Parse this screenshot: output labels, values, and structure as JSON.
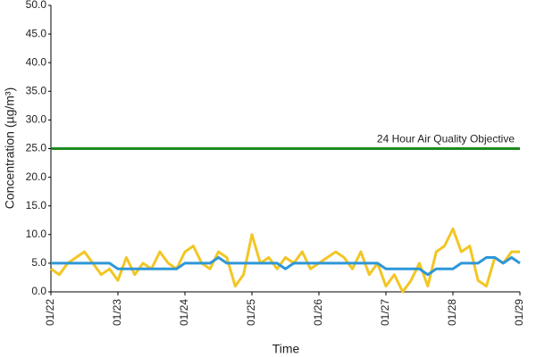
{
  "chart_data": {
    "type": "line",
    "xlabel": "Time",
    "ylabel": "Concentration (µg/m³)",
    "categories": [
      "01/22",
      null,
      null,
      null,
      null,
      null,
      null,
      null,
      "01/23",
      null,
      null,
      null,
      null,
      null,
      null,
      null,
      "01/24",
      null,
      null,
      null,
      null,
      null,
      null,
      null,
      "01/25",
      null,
      null,
      null,
      null,
      null,
      null,
      null,
      "01/26",
      null,
      null,
      null,
      null,
      null,
      null,
      null,
      "01/27",
      null,
      null,
      null,
      null,
      null,
      null,
      null,
      "01/28",
      null,
      null,
      null,
      null,
      null,
      null,
      null,
      "01/29"
    ],
    "series": [
      {
        "color": "#f2c624",
        "values": [
          4,
          3,
          5,
          6,
          7,
          5,
          3,
          4,
          2,
          6,
          3,
          5,
          4,
          7,
          5,
          4,
          7,
          8,
          5,
          4,
          7,
          6,
          1,
          3,
          10,
          5,
          6,
          4,
          6,
          5,
          7,
          4,
          5,
          6,
          7,
          6,
          4,
          7,
          3,
          5,
          1,
          3,
          0,
          2,
          5,
          1,
          7,
          8,
          11,
          7,
          8,
          2,
          1,
          6,
          5,
          7,
          7
        ]
      },
      {
        "color": "#2e97d8",
        "values": [
          5,
          5,
          5,
          5,
          5,
          5,
          5,
          5,
          4,
          4,
          4,
          4,
          4,
          4,
          4,
          4,
          5,
          5,
          5,
          5,
          6,
          5,
          5,
          5,
          5,
          5,
          5,
          5,
          4,
          5,
          5,
          5,
          5,
          5,
          5,
          5,
          5,
          5,
          5,
          5,
          4,
          4,
          4,
          4,
          4,
          3,
          4,
          4,
          4,
          5,
          5,
          5,
          6,
          6,
          5,
          6,
          5
        ]
      }
    ],
    "objective": {
      "value": 25,
      "label": "24 Hour Air Quality Objective",
      "color": "#1e8a1e"
    },
    "ylim": [
      0,
      50
    ],
    "yticks": [
      {
        "value": 0,
        "label": "0.0"
      },
      {
        "value": 5,
        "label": "5.0"
      },
      {
        "value": 10,
        "label": "10.0"
      },
      {
        "value": 15,
        "label": "15.0"
      },
      {
        "value": 20,
        "label": "20.0"
      },
      {
        "value": 25,
        "label": "25.0"
      },
      {
        "value": 30,
        "label": "30.0"
      },
      {
        "value": 35,
        "label": "35.0"
      },
      {
        "value": 40,
        "label": "40.0"
      },
      {
        "value": 45,
        "label": "45.0"
      },
      {
        "value": 50,
        "label": "50.0"
      }
    ]
  }
}
